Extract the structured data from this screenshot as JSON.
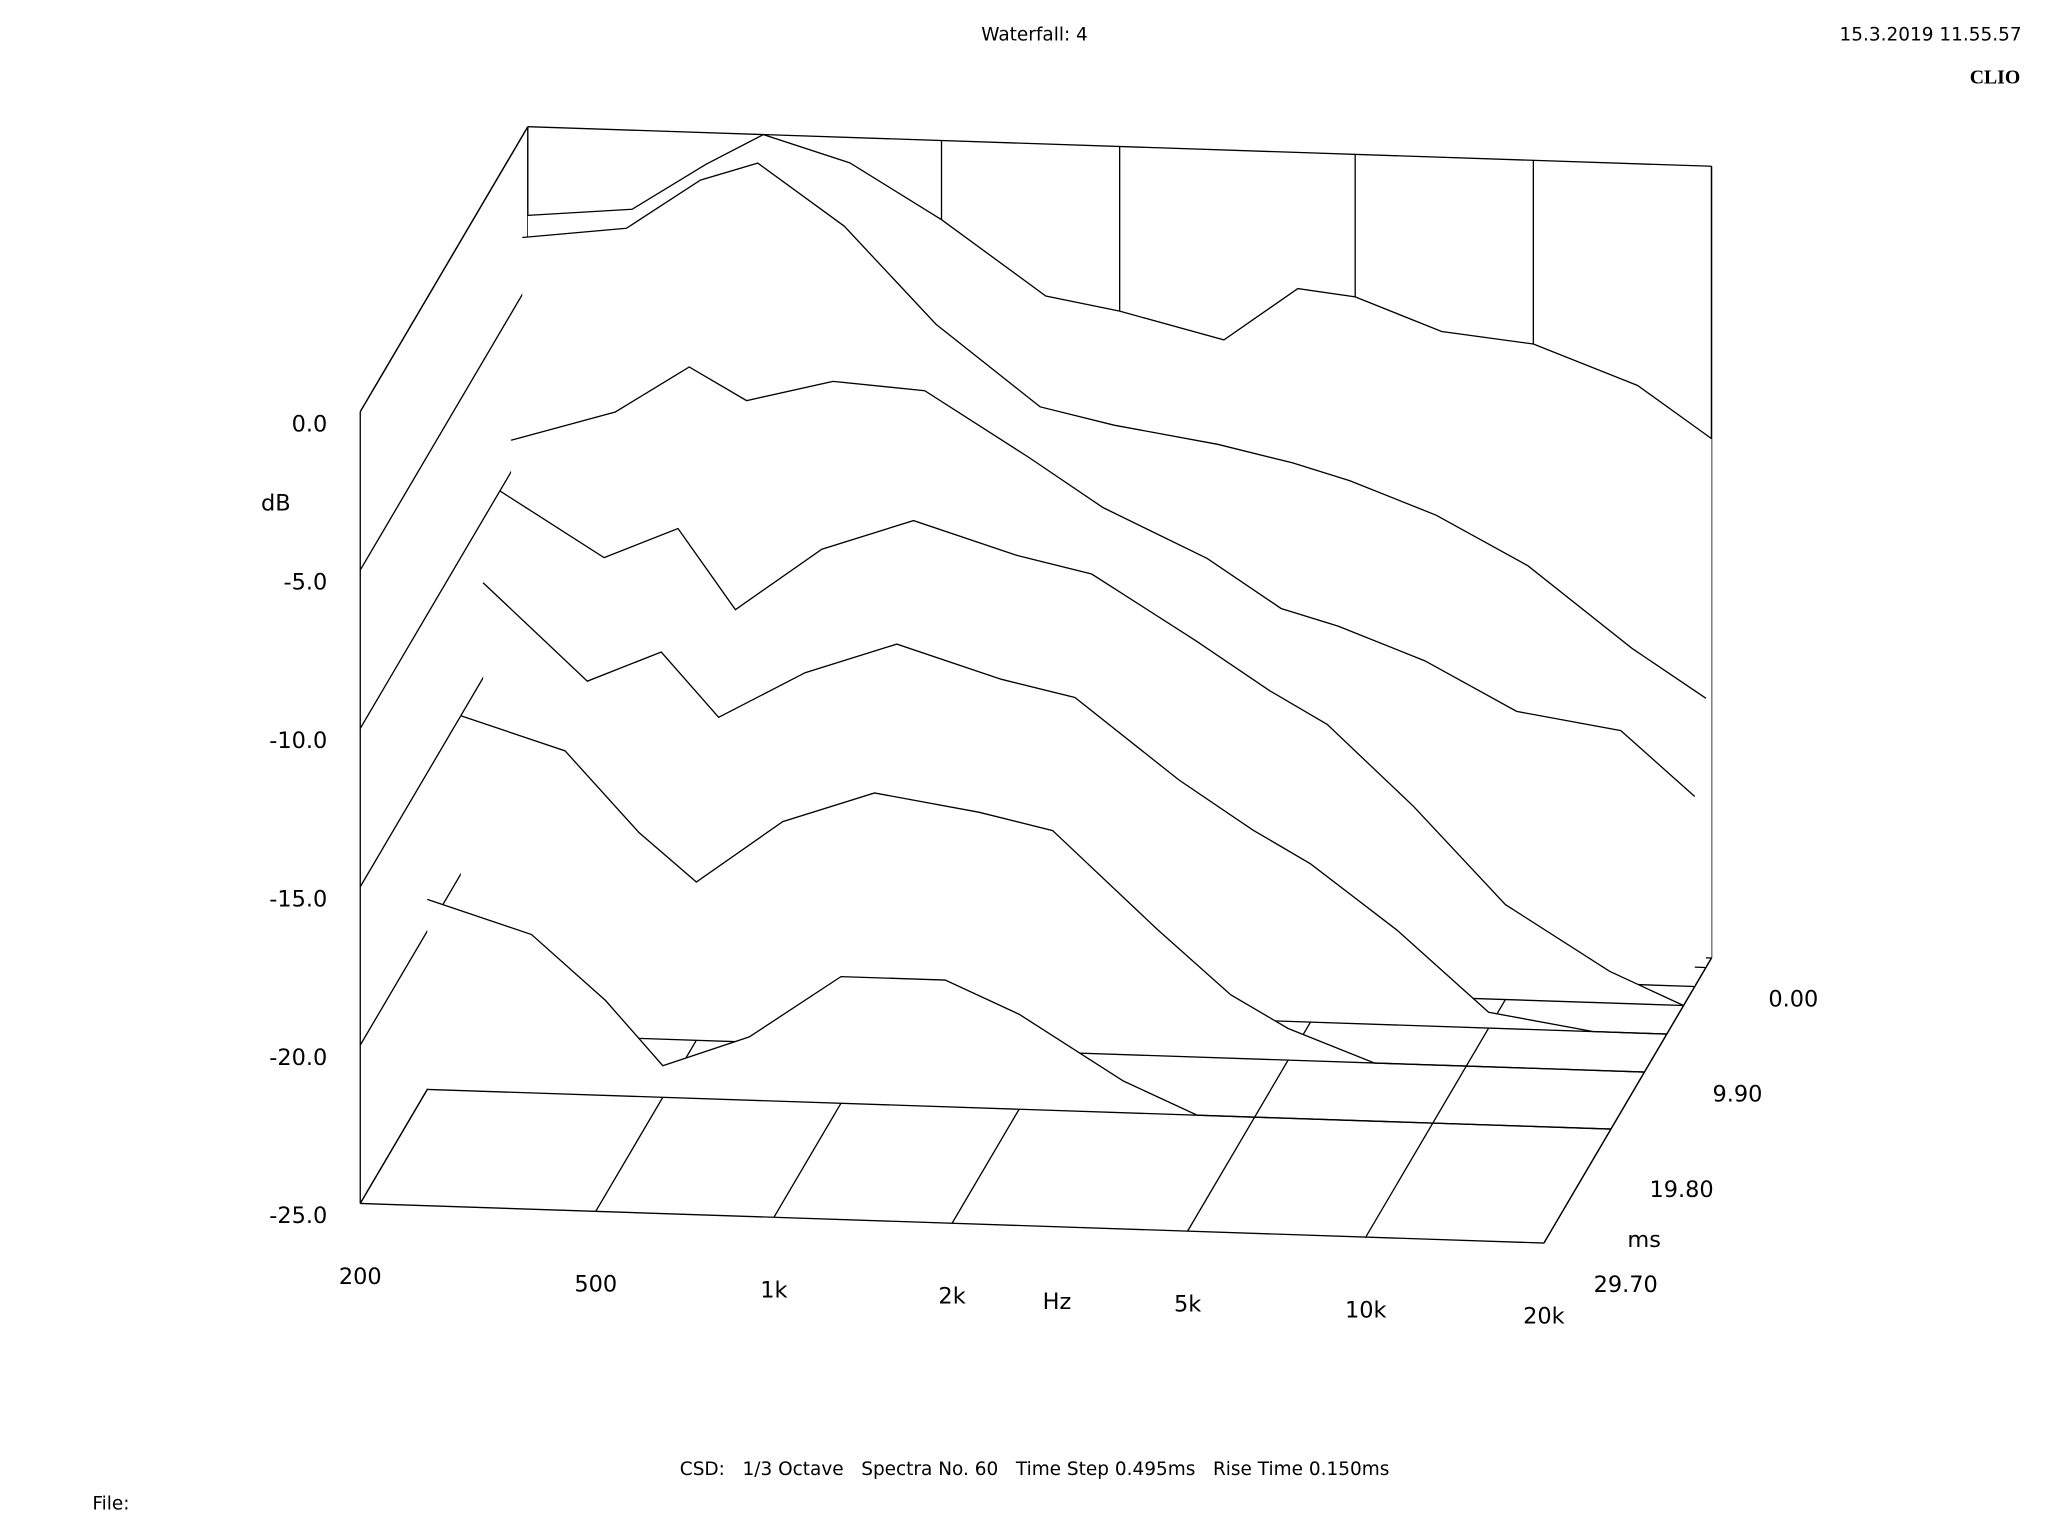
{
  "chart_data": {
    "type": "waterfall",
    "title": "Waterfall: 4",
    "date": "15.3.2019 11.55.57",
    "brand": "CLIO",
    "xlabel": "Hz",
    "ylabel": "dB",
    "tlabel": "ms",
    "footer": "CSD:   1/3 Octave   Spectra No. 60   Time Step 0.495ms   Rise Time 0.150ms",
    "file_label": "File:",
    "xscale": "log",
    "xlim": [
      200,
      20000
    ],
    "xticks": [
      200,
      500,
      {
        "value": 1000,
        "label": "1k"
      },
      {
        "value": 2000,
        "label": "2k"
      },
      {
        "value": 5000,
        "label": "5k"
      },
      {
        "value": 10000,
        "label": "10k"
      },
      {
        "value": 20000,
        "label": "20k"
      }
    ],
    "ylim": [
      -25,
      0
    ],
    "yticks": [
      {
        "value": 0,
        "label": "0.0"
      },
      {
        "value": -5,
        "label": "-5.0"
      },
      {
        "value": -10,
        "label": "-10.0"
      },
      {
        "value": -15,
        "label": "-15.0"
      },
      {
        "value": -20,
        "label": "-20.0"
      },
      {
        "value": -25,
        "label": "-25.0"
      }
    ],
    "tlim": [
      0,
      29.7
    ],
    "tticks": [
      {
        "value": 0,
        "label": "0.00"
      },
      {
        "value": 9.9,
        "label": "9.90"
      },
      {
        "value": 19.8,
        "label": "19.80"
      },
      {
        "value": 29.7,
        "label": "29.70"
      }
    ],
    "color": "#000000",
    "x": [
      200,
      300,
      400,
      500,
      700,
      1000,
      1500,
      2000,
      3000,
      4000,
      5000,
      7000,
      10000,
      15000,
      20000
    ],
    "series": [
      {
        "time": 0,
        "values": [
          -2.8,
          -2.5,
          -1.0,
          0,
          -0.8,
          -2.5,
          -4.8,
          -5.2,
          -6.0,
          -4.3,
          -4.5,
          -5.5,
          -5.8,
          -7.0,
          -8.6
        ]
      },
      {
        "time": 0.99,
        "values": [
          -3.2,
          -2.8,
          -1.2,
          -0.6,
          -2.5,
          -5.5,
          -8,
          -8.5,
          -9,
          -9.5,
          -10,
          -11,
          -12.5,
          -15,
          -16.5
        ]
      },
      {
        "time": 2.97,
        "values": [
          -9,
          -8,
          -6.5,
          -7.5,
          -6.8,
          -7,
          -9,
          -10.5,
          -12,
          -13.5,
          -14,
          -15,
          -16.5,
          -17,
          -19
        ]
      },
      {
        "time": 4.95,
        "values": [
          -10,
          -12,
          -11,
          -13.5,
          -11.5,
          -10.5,
          -11.5,
          -12,
          -14,
          -15.5,
          -16.5,
          -19,
          -22,
          -24,
          -25
        ]
      },
      {
        "time": 7.92,
        "values": [
          -12,
          -15,
          -14,
          -16,
          -14.5,
          -13.5,
          -14.5,
          -15,
          -17.5,
          -19,
          -20,
          -22,
          -24.5,
          -25,
          -25
        ]
      },
      {
        "time": 11.88,
        "values": [
          -15,
          -16,
          -18.5,
          -20,
          -18,
          -17,
          -17.5,
          -18,
          -21,
          -23,
          -24,
          -25,
          -25,
          -25,
          -25
        ]
      },
      {
        "time": 17.82,
        "values": [
          -19,
          -20,
          -22,
          -24,
          -23,
          -21,
          -21,
          -22,
          -24,
          -25,
          -25,
          -25,
          -25,
          -25,
          -25
        ]
      }
    ]
  }
}
